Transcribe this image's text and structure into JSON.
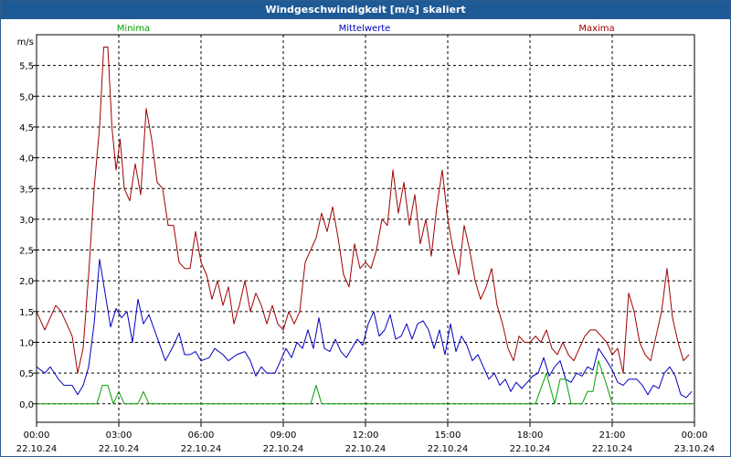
{
  "window": {
    "title": "Windgeschwindigkeit [m/s] skaliert"
  },
  "colors": {
    "minima": "#00a000",
    "mittelwerte": "#0000c0",
    "maxima": "#a00000",
    "grid": "#000000",
    "titlebar": "#1e5a95"
  },
  "chart_data": {
    "type": "line",
    "title": "Windgeschwindigkeit [m/s] skaliert",
    "ylabel": "m/s",
    "ylim": [
      -0.3,
      6.0
    ],
    "xlim": [
      0,
      24
    ],
    "x_unit": "hours since 22.10.24 00:00",
    "grid": true,
    "legend_placement": "top",
    "y_ticks": [
      "0,0",
      "0,5",
      "1,0",
      "1,5",
      "2,0",
      "2,5",
      "3,0",
      "3,5",
      "4,0",
      "4,5",
      "5,0",
      "5,5"
    ],
    "y_tick_values": [
      0,
      0.5,
      1.0,
      1.5,
      2.0,
      2.5,
      3.0,
      3.5,
      4.0,
      4.5,
      5.0,
      5.5
    ],
    "x_ticks": [
      {
        "time": "00:00",
        "date": "22.10.24"
      },
      {
        "time": "03:00",
        "date": "22.10.24"
      },
      {
        "time": "06:00",
        "date": "22.10.24"
      },
      {
        "time": "09:00",
        "date": "22.10.24"
      },
      {
        "time": "12:00",
        "date": "22.10.24"
      },
      {
        "time": "15:00",
        "date": "22.10.24"
      },
      {
        "time": "18:00",
        "date": "22.10.24"
      },
      {
        "time": "21:00",
        "date": "22.10.24"
      },
      {
        "time": "00:00",
        "date": "23.10.24"
      }
    ],
    "x_tick_values": [
      0,
      3,
      6,
      9,
      12,
      15,
      18,
      21,
      24
    ],
    "series": [
      {
        "name": "Minima",
        "color": "#00a000",
        "points": [
          [
            0,
            0
          ],
          [
            2.2,
            0
          ],
          [
            2.4,
            0.3
          ],
          [
            2.6,
            0.3
          ],
          [
            2.8,
            0
          ],
          [
            3.0,
            0.2
          ],
          [
            3.2,
            0
          ],
          [
            3.7,
            0
          ],
          [
            3.9,
            0.2
          ],
          [
            4.1,
            0
          ],
          [
            10.0,
            0
          ],
          [
            10.2,
            0.3
          ],
          [
            10.4,
            0
          ],
          [
            18.2,
            0
          ],
          [
            18.6,
            0.5
          ],
          [
            18.9,
            0
          ],
          [
            19.1,
            0.4
          ],
          [
            19.3,
            0.4
          ],
          [
            19.5,
            0
          ],
          [
            19.9,
            0
          ],
          [
            20.1,
            0.2
          ],
          [
            20.3,
            0.2
          ],
          [
            20.5,
            0.7
          ],
          [
            20.8,
            0.3
          ],
          [
            21.0,
            0
          ],
          [
            24,
            0
          ]
        ]
      },
      {
        "name": "Mittelwerte",
        "color": "#0000c0",
        "points": [
          [
            0,
            0.6
          ],
          [
            0.3,
            0.5
          ],
          [
            0.5,
            0.6
          ],
          [
            0.8,
            0.4
          ],
          [
            1.0,
            0.3
          ],
          [
            1.3,
            0.3
          ],
          [
            1.5,
            0.15
          ],
          [
            1.7,
            0.3
          ],
          [
            1.9,
            0.6
          ],
          [
            2.1,
            1.3
          ],
          [
            2.3,
            2.35
          ],
          [
            2.5,
            1.8
          ],
          [
            2.7,
            1.25
          ],
          [
            2.9,
            1.55
          ],
          [
            3.1,
            1.4
          ],
          [
            3.3,
            1.5
          ],
          [
            3.5,
            1.0
          ],
          [
            3.7,
            1.7
          ],
          [
            3.9,
            1.3
          ],
          [
            4.1,
            1.45
          ],
          [
            4.3,
            1.2
          ],
          [
            4.5,
            0.95
          ],
          [
            4.7,
            0.7
          ],
          [
            5.0,
            0.95
          ],
          [
            5.2,
            1.15
          ],
          [
            5.4,
            0.8
          ],
          [
            5.6,
            0.8
          ],
          [
            5.8,
            0.85
          ],
          [
            6.0,
            0.7
          ],
          [
            6.3,
            0.75
          ],
          [
            6.5,
            0.9
          ],
          [
            6.8,
            0.8
          ],
          [
            7.0,
            0.7
          ],
          [
            7.3,
            0.8
          ],
          [
            7.6,
            0.85
          ],
          [
            7.8,
            0.7
          ],
          [
            8.0,
            0.45
          ],
          [
            8.2,
            0.6
          ],
          [
            8.4,
            0.5
          ],
          [
            8.7,
            0.5
          ],
          [
            8.9,
            0.7
          ],
          [
            9.1,
            0.9
          ],
          [
            9.3,
            0.75
          ],
          [
            9.5,
            1.0
          ],
          [
            9.7,
            0.9
          ],
          [
            9.9,
            1.2
          ],
          [
            10.1,
            0.9
          ],
          [
            10.3,
            1.4
          ],
          [
            10.5,
            0.9
          ],
          [
            10.7,
            0.85
          ],
          [
            10.9,
            1.05
          ],
          [
            11.1,
            0.85
          ],
          [
            11.3,
            0.75
          ],
          [
            11.5,
            0.9
          ],
          [
            11.7,
            1.05
          ],
          [
            11.9,
            0.95
          ],
          [
            12.1,
            1.3
          ],
          [
            12.3,
            1.5
          ],
          [
            12.5,
            1.1
          ],
          [
            12.7,
            1.2
          ],
          [
            12.9,
            1.45
          ],
          [
            13.1,
            1.05
          ],
          [
            13.3,
            1.1
          ],
          [
            13.5,
            1.3
          ],
          [
            13.7,
            1.05
          ],
          [
            13.9,
            1.3
          ],
          [
            14.1,
            1.35
          ],
          [
            14.3,
            1.2
          ],
          [
            14.5,
            0.9
          ],
          [
            14.7,
            1.2
          ],
          [
            14.9,
            0.8
          ],
          [
            15.1,
            1.3
          ],
          [
            15.3,
            0.85
          ],
          [
            15.5,
            1.1
          ],
          [
            15.7,
            0.95
          ],
          [
            15.9,
            0.7
          ],
          [
            16.1,
            0.8
          ],
          [
            16.3,
            0.6
          ],
          [
            16.5,
            0.4
          ],
          [
            16.7,
            0.5
          ],
          [
            16.9,
            0.3
          ],
          [
            17.1,
            0.4
          ],
          [
            17.3,
            0.2
          ],
          [
            17.5,
            0.35
          ],
          [
            17.7,
            0.25
          ],
          [
            17.9,
            0.35
          ],
          [
            18.1,
            0.45
          ],
          [
            18.3,
            0.5
          ],
          [
            18.5,
            0.75
          ],
          [
            18.7,
            0.45
          ],
          [
            18.9,
            0.6
          ],
          [
            19.1,
            0.7
          ],
          [
            19.3,
            0.4
          ],
          [
            19.5,
            0.35
          ],
          [
            19.7,
            0.5
          ],
          [
            19.9,
            0.45
          ],
          [
            20.1,
            0.6
          ],
          [
            20.3,
            0.55
          ],
          [
            20.5,
            0.9
          ],
          [
            20.8,
            0.7
          ],
          [
            21.0,
            0.55
          ],
          [
            21.2,
            0.35
          ],
          [
            21.4,
            0.3
          ],
          [
            21.6,
            0.4
          ],
          [
            21.9,
            0.4
          ],
          [
            22.1,
            0.3
          ],
          [
            22.3,
            0.15
          ],
          [
            22.5,
            0.3
          ],
          [
            22.7,
            0.25
          ],
          [
            22.9,
            0.5
          ],
          [
            23.1,
            0.6
          ],
          [
            23.3,
            0.45
          ],
          [
            23.5,
            0.15
          ],
          [
            23.7,
            0.1
          ],
          [
            23.9,
            0.2
          ]
        ]
      },
      {
        "name": "Maxima",
        "color": "#a00000",
        "points": [
          [
            0,
            1.5
          ],
          [
            0.3,
            1.2
          ],
          [
            0.5,
            1.4
          ],
          [
            0.7,
            1.6
          ],
          [
            0.9,
            1.5
          ],
          [
            1.1,
            1.3
          ],
          [
            1.3,
            1.1
          ],
          [
            1.5,
            0.5
          ],
          [
            1.7,
            0.9
          ],
          [
            1.9,
            2.1
          ],
          [
            2.1,
            3.5
          ],
          [
            2.3,
            4.5
          ],
          [
            2.45,
            5.8
          ],
          [
            2.6,
            5.8
          ],
          [
            2.75,
            4.5
          ],
          [
            2.9,
            3.8
          ],
          [
            3.05,
            4.3
          ],
          [
            3.2,
            3.5
          ],
          [
            3.4,
            3.3
          ],
          [
            3.6,
            3.9
          ],
          [
            3.8,
            3.4
          ],
          [
            4.0,
            4.8
          ],
          [
            4.2,
            4.3
          ],
          [
            4.4,
            3.6
          ],
          [
            4.6,
            3.5
          ],
          [
            4.8,
            2.9
          ],
          [
            5.0,
            2.9
          ],
          [
            5.2,
            2.3
          ],
          [
            5.4,
            2.2
          ],
          [
            5.6,
            2.2
          ],
          [
            5.8,
            2.8
          ],
          [
            6.0,
            2.3
          ],
          [
            6.2,
            2.1
          ],
          [
            6.4,
            1.7
          ],
          [
            6.6,
            2.0
          ],
          [
            6.8,
            1.6
          ],
          [
            7.0,
            1.9
          ],
          [
            7.2,
            1.3
          ],
          [
            7.4,
            1.6
          ],
          [
            7.6,
            2.0
          ],
          [
            7.8,
            1.5
          ],
          [
            8.0,
            1.8
          ],
          [
            8.2,
            1.6
          ],
          [
            8.4,
            1.3
          ],
          [
            8.6,
            1.6
          ],
          [
            8.8,
            1.3
          ],
          [
            9.0,
            1.2
          ],
          [
            9.2,
            1.5
          ],
          [
            9.4,
            1.3
          ],
          [
            9.6,
            1.5
          ],
          [
            9.8,
            2.3
          ],
          [
            10.0,
            2.5
          ],
          [
            10.2,
            2.7
          ],
          [
            10.4,
            3.1
          ],
          [
            10.6,
            2.8
          ],
          [
            10.8,
            3.2
          ],
          [
            11.0,
            2.7
          ],
          [
            11.2,
            2.1
          ],
          [
            11.4,
            1.9
          ],
          [
            11.6,
            2.6
          ],
          [
            11.8,
            2.2
          ],
          [
            12.0,
            2.3
          ],
          [
            12.2,
            2.2
          ],
          [
            12.4,
            2.5
          ],
          [
            12.6,
            3.0
          ],
          [
            12.8,
            2.9
          ],
          [
            13.0,
            3.8
          ],
          [
            13.2,
            3.1
          ],
          [
            13.4,
            3.6
          ],
          [
            13.6,
            2.9
          ],
          [
            13.8,
            3.4
          ],
          [
            14.0,
            2.6
          ],
          [
            14.2,
            3.0
          ],
          [
            14.4,
            2.4
          ],
          [
            14.6,
            3.2
          ],
          [
            14.8,
            3.8
          ],
          [
            15.0,
            3.0
          ],
          [
            15.2,
            2.5
          ],
          [
            15.4,
            2.1
          ],
          [
            15.6,
            2.9
          ],
          [
            15.8,
            2.5
          ],
          [
            16.0,
            2.0
          ],
          [
            16.2,
            1.7
          ],
          [
            16.4,
            1.9
          ],
          [
            16.6,
            2.2
          ],
          [
            16.8,
            1.6
          ],
          [
            17.0,
            1.3
          ],
          [
            17.2,
            0.9
          ],
          [
            17.4,
            0.7
          ],
          [
            17.6,
            1.1
          ],
          [
            17.8,
            1.0
          ],
          [
            18.0,
            1.0
          ],
          [
            18.2,
            1.1
          ],
          [
            18.4,
            1.0
          ],
          [
            18.6,
            1.2
          ],
          [
            18.8,
            0.9
          ],
          [
            19.0,
            0.8
          ],
          [
            19.2,
            1.0
          ],
          [
            19.4,
            0.8
          ],
          [
            19.6,
            0.7
          ],
          [
            19.8,
            0.9
          ],
          [
            20.0,
            1.1
          ],
          [
            20.2,
            1.2
          ],
          [
            20.4,
            1.2
          ],
          [
            20.6,
            1.1
          ],
          [
            20.8,
            1.0
          ],
          [
            21.0,
            0.8
          ],
          [
            21.2,
            0.9
          ],
          [
            21.4,
            0.5
          ],
          [
            21.6,
            1.8
          ],
          [
            21.8,
            1.5
          ],
          [
            22.0,
            1.0
          ],
          [
            22.2,
            0.8
          ],
          [
            22.4,
            0.7
          ],
          [
            22.6,
            1.1
          ],
          [
            22.8,
            1.5
          ],
          [
            23.0,
            2.2
          ],
          [
            23.2,
            1.4
          ],
          [
            23.4,
            1.0
          ],
          [
            23.6,
            0.7
          ],
          [
            23.8,
            0.8
          ]
        ]
      }
    ]
  }
}
